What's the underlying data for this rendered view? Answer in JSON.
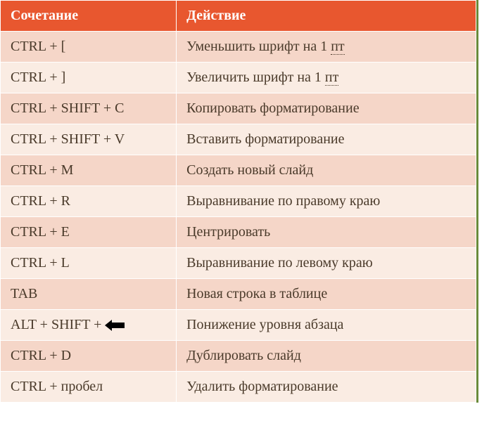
{
  "table": {
    "columns": [
      "Сочетание",
      "Действие"
    ],
    "header_bg": "#e8572f",
    "header_fg": "#ffffff",
    "row_bg_odd": "#f5d6c8",
    "row_bg_even": "#faece3",
    "text_color": "#4a3a2a",
    "border_color": "#ffffff",
    "accent_border": "#6a8a3a",
    "font_size": 20,
    "rows": [
      {
        "shortcut": "CTRL + [",
        "action_pre": "Уменьшить шрифт на 1 ",
        "action_dotted": "пт",
        "has_arrow": false
      },
      {
        "shortcut": "CTRL + ]",
        "action_pre": "Увеличить шрифт на 1 ",
        "action_dotted": "пт",
        "has_arrow": false
      },
      {
        "shortcut": "CTRL + SHIFT + C",
        "action_pre": "Копировать форматирование",
        "action_dotted": "",
        "has_arrow": false
      },
      {
        "shortcut": "CTRL + SHIFT + V",
        "action_pre": "Вставить форматирование",
        "action_dotted": "",
        "has_arrow": false
      },
      {
        "shortcut": "CTRL + M",
        "action_pre": "Создать новый слайд",
        "action_dotted": "",
        "has_arrow": false
      },
      {
        "shortcut": "CTRL + R",
        "action_pre": "Выравнивание по правому краю",
        "action_dotted": "",
        "has_arrow": false
      },
      {
        "shortcut": "CTRL + E",
        "action_pre": "Центрировать",
        "action_dotted": "",
        "has_arrow": false
      },
      {
        "shortcut": "CTRL + L",
        "action_pre": "Выравнивание по левому краю",
        "action_dotted": "",
        "has_arrow": false
      },
      {
        "shortcut": "TAB",
        "action_pre": "Новая строка в таблице",
        "action_dotted": "",
        "has_arrow": false
      },
      {
        "shortcut": "ALT + SHIFT + ",
        "action_pre": "Понижение уровня абзаца",
        "action_dotted": "",
        "has_arrow": true
      },
      {
        "shortcut": "CTRL + D",
        "action_pre": "Дублировать слайд",
        "action_dotted": "",
        "has_arrow": false
      },
      {
        "shortcut": "CTRL + пробел",
        "action_pre": "Удалить форматирование",
        "action_dotted": "",
        "has_arrow": false
      }
    ],
    "arrow_icon_color": "#000000"
  }
}
